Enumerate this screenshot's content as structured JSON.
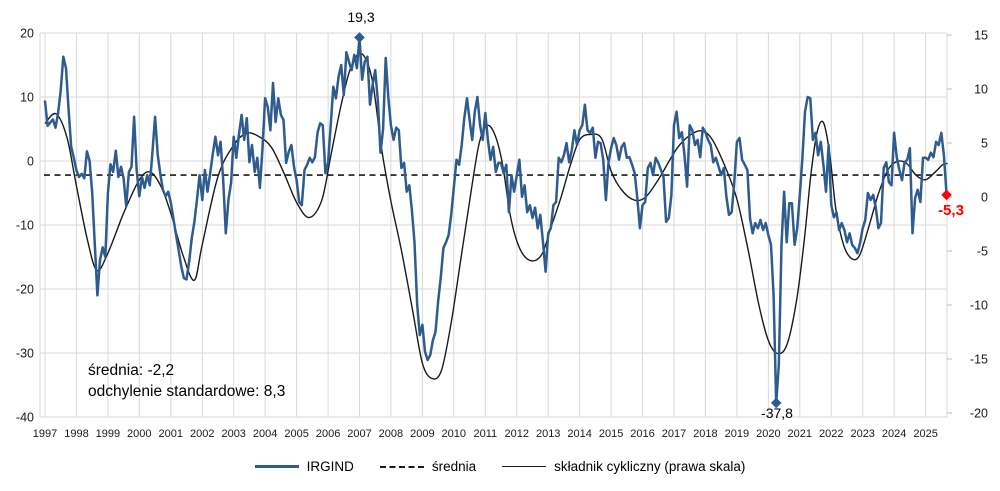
{
  "chart_data": {
    "type": "line",
    "title": "",
    "x_axis": {
      "tick_years": [
        1997,
        1998,
        1999,
        2000,
        2001,
        2002,
        2003,
        2004,
        2005,
        2006,
        2007,
        2008,
        2009,
        2010,
        2011,
        2012,
        2013,
        2014,
        2015,
        2016,
        2017,
        2018,
        2019,
        2020,
        2021,
        2022,
        2023,
        2024,
        2025
      ],
      "range": [
        1997.0,
        2025.83
      ]
    },
    "left_axis": {
      "ticks": [
        20,
        10,
        0,
        -10,
        -20,
        -30,
        -40
      ],
      "min": -40,
      "max": 20
    },
    "right_axis": {
      "ticks": [
        15,
        10,
        5,
        0,
        -5,
        -10,
        -15,
        -20
      ],
      "min": -20,
      "max": 15
    },
    "grid": true,
    "grid_color": "#d9d9d9",
    "mean_value": -2.2,
    "std_dev": 8.3,
    "series": [
      {
        "name": "IRGIND",
        "axis": "left",
        "color": "#2e5c8f",
        "frequency": "monthly",
        "start_year": 1997,
        "values_by_year": [
          [
            9.3,
            5.5,
            6.0,
            6.5,
            5.2,
            7.5,
            11.0,
            16.3,
            14.5,
            8.0,
            2.2,
            0.5
          ],
          [
            -1.5,
            -2.5,
            -2.0,
            -2.7,
            1.5,
            0.0,
            -5.0,
            -13.0,
            -21.0,
            -15.5,
            -13.5,
            -15.0
          ],
          [
            -5.0,
            -0.5,
            -1.7,
            1.6,
            -2.5,
            -0.9,
            -2.7,
            -7.1,
            -1.7,
            -0.9,
            6.9,
            -1.5
          ],
          [
            -5.5,
            -2.5,
            -4.2,
            -2.2,
            -3.8,
            1.5,
            6.9,
            1.0,
            -2.0,
            -4.5,
            -5.5,
            -4.8
          ],
          [
            -6.5,
            -9.0,
            -11.5,
            -14.0,
            -16.5,
            -18.3,
            -18.5,
            -15.8,
            -12.0,
            -9.5,
            -6.0,
            -2.2
          ],
          [
            -6.1,
            -1.4,
            -4.8,
            -2.0,
            1.0,
            3.8,
            0.9,
            3.0,
            -3.0,
            -11.3,
            -6.0,
            -3.4
          ],
          [
            3.8,
            0.5,
            4.1,
            7.2,
            3.3,
            6.7,
            -0.2,
            2.5,
            -1.7,
            0.5,
            -4.2,
            2.0
          ],
          [
            9.8,
            8.4,
            4.8,
            12.2,
            6.1,
            9.8,
            7.2,
            6.4,
            -0.3,
            1.4,
            2.5,
            -0.9
          ],
          [
            -3.0,
            -6.4,
            -6.9,
            -1.4,
            -0.6,
            0.5,
            -0.2,
            0.6,
            4.5,
            5.9,
            5.6,
            -1.9
          ],
          [
            -0.2,
            5.6,
            11.6,
            9.8,
            13.1,
            15.0,
            10.3,
            17.0,
            15.5,
            14.2,
            16.6,
            14.5
          ],
          [
            19.3,
            12.7,
            15.5,
            16.3,
            8.8,
            11.9,
            14.2,
            9.5,
            1.3,
            5.0,
            16.1,
            10.0
          ],
          [
            5.6,
            3.3,
            5.2,
            4.8,
            -1.1,
            -0.3,
            -4.8,
            -3.8,
            -7.7,
            -12.7,
            -22.5,
            -27.2
          ],
          [
            -25.6,
            -29.8,
            -31.1,
            -30.3,
            -28.0,
            -26.7,
            -22.0,
            -18.3,
            -13.6,
            -12.7,
            -11.6,
            -8.4
          ],
          [
            -4.2,
            0.2,
            -0.6,
            2.5,
            6.7,
            9.8,
            6.4,
            3.3,
            7.7,
            10.0,
            5.6,
            3.3
          ],
          [
            7.5,
            3.3,
            0.2,
            2.2,
            -1.7,
            -0.3,
            -0.3,
            -1.9,
            -0.6,
            -8.0,
            -2.2,
            -4.8
          ],
          [
            -2.2,
            0.2,
            -5.6,
            -3.8,
            -8.0,
            -6.9,
            -8.9,
            -7.3,
            -10.5,
            -8.4,
            -12.7,
            -17.3
          ],
          [
            -11.3,
            -10.5,
            -6.9,
            -6.4,
            0.5,
            -0.2,
            0.9,
            2.8,
            -0.2,
            1.7,
            4.8,
            2.5
          ],
          [
            4.8,
            5.6,
            8.8,
            4.8,
            4.4,
            5.2,
            0.5,
            3.0,
            2.8,
            0.2,
            -6.1,
            -0.2
          ],
          [
            2.0,
            3.6,
            2.5,
            0.2,
            2.2,
            2.8,
            0.5,
            0.6,
            -0.6,
            -1.9,
            -5.8,
            -10.5
          ],
          [
            -6.9,
            -6.4,
            -1.1,
            -0.3,
            -2.2,
            0.5,
            -0.3,
            -1.4,
            -2.5,
            -9.5,
            -8.9,
            -5.3
          ],
          [
            5.6,
            7.7,
            3.6,
            4.5,
            0.9,
            -4.0,
            5.6,
            4.8,
            2.5,
            3.3,
            0.6,
            5.2
          ],
          [
            4.5,
            3.3,
            2.5,
            -0.2,
            0.5,
            -0.9,
            -2.2,
            -1.1,
            -5.6,
            -8.4,
            -8.0,
            -3.3
          ],
          [
            3.0,
            3.6,
            0.2,
            -0.6,
            -1.4,
            -8.9,
            -11.3,
            -9.7,
            -10.5,
            -9.2,
            -10.8,
            -9.7
          ],
          [
            -11.6,
            -13.1,
            -21.0,
            -37.8,
            -31.9,
            -13.1,
            -4.8,
            -12.7,
            -6.6,
            -6.6,
            -13.1,
            -10.5
          ],
          [
            -5.3,
            0.5,
            7.7,
            10.0,
            9.8,
            3.3,
            4.4,
            0.9,
            3.0,
            -0.6,
            -4.8,
            2.5
          ],
          [
            -6.9,
            -8.8,
            -8.0,
            -10.8,
            -9.7,
            -10.8,
            -12.7,
            -11.3,
            -13.1,
            -13.6,
            -14.4,
            -12.8
          ],
          [
            -10.5,
            -9.2,
            -5.0,
            -6.1,
            -5.3,
            -7.3,
            -10.5,
            -9.7,
            -1.1,
            -0.2,
            -3.3,
            -3.8
          ],
          [
            4.4,
            0.5,
            -1.4,
            -3.0,
            -0.2,
            0.2,
            2.0,
            -11.3,
            -5.8,
            -4.5,
            -6.4,
            0.5
          ],
          [
            0.5,
            0.2,
            1.3,
            0.6,
            3.0,
            2.5,
            4.4,
            0.9,
            -5.3
          ]
        ]
      },
      {
        "name": "średnia",
        "axis": "left",
        "style": "dashed",
        "color": "#1a1a1a",
        "value": -2.2
      },
      {
        "name": "składnik cykliczny (prawa skala)",
        "axis": "right",
        "style": "solid-thin",
        "color": "#1a1a1a",
        "keypoints": [
          [
            1997.0,
            6.8
          ],
          [
            1997.35,
            7.7
          ],
          [
            1997.7,
            5.5
          ],
          [
            1998.0,
            1.0
          ],
          [
            1998.35,
            -4.0
          ],
          [
            1998.65,
            -6.8
          ],
          [
            1999.0,
            -5.2
          ],
          [
            1999.5,
            -1.5
          ],
          [
            2000.0,
            1.6
          ],
          [
            2000.35,
            2.3
          ],
          [
            2000.7,
            0.9
          ],
          [
            2001.0,
            -1.5
          ],
          [
            2001.4,
            -5.5
          ],
          [
            2001.75,
            -7.7
          ],
          [
            2002.0,
            -4.4
          ],
          [
            2002.5,
            1.9
          ],
          [
            2003.0,
            4.8
          ],
          [
            2003.4,
            5.9
          ],
          [
            2003.8,
            5.6
          ],
          [
            2004.2,
            4.6
          ],
          [
            2004.6,
            2.2
          ],
          [
            2005.0,
            -0.5
          ],
          [
            2005.4,
            -1.9
          ],
          [
            2005.8,
            -0.3
          ],
          [
            2006.1,
            4.0
          ],
          [
            2006.4,
            8.3
          ],
          [
            2006.7,
            11.8
          ],
          [
            2007.05,
            13.3
          ],
          [
            2007.4,
            10.9
          ],
          [
            2007.7,
            4.5
          ],
          [
            2008.0,
            -0.4
          ],
          [
            2008.35,
            -5.2
          ],
          [
            2008.7,
            -10.7
          ],
          [
            2009.0,
            -15.4
          ],
          [
            2009.3,
            -16.8
          ],
          [
            2009.6,
            -16.1
          ],
          [
            2009.9,
            -11.9
          ],
          [
            2010.2,
            -6.2
          ],
          [
            2010.5,
            -0.4
          ],
          [
            2010.8,
            4.9
          ],
          [
            2011.05,
            6.6
          ],
          [
            2011.3,
            5.8
          ],
          [
            2011.55,
            3.0
          ],
          [
            2011.8,
            -1.8
          ],
          [
            2012.1,
            -4.8
          ],
          [
            2012.45,
            -5.9
          ],
          [
            2012.8,
            -5.3
          ],
          [
            2013.1,
            -2.7
          ],
          [
            2013.4,
            -0.1
          ],
          [
            2013.7,
            2.9
          ],
          [
            2014.0,
            5.3
          ],
          [
            2014.35,
            5.8
          ],
          [
            2014.7,
            5.4
          ],
          [
            2015.0,
            2.4
          ],
          [
            2015.35,
            0.6
          ],
          [
            2015.75,
            -0.3
          ],
          [
            2016.1,
            0.0
          ],
          [
            2016.5,
            1.6
          ],
          [
            2016.9,
            3.6
          ],
          [
            2017.2,
            4.9
          ],
          [
            2017.6,
            5.9
          ],
          [
            2017.9,
            6.1
          ],
          [
            2018.2,
            5.4
          ],
          [
            2018.6,
            3.0
          ],
          [
            2019.0,
            -0.2
          ],
          [
            2019.35,
            -4.8
          ],
          [
            2019.7,
            -10.0
          ],
          [
            2020.0,
            -13.3
          ],
          [
            2020.3,
            -14.5
          ],
          [
            2020.6,
            -13.6
          ],
          [
            2020.9,
            -9.5
          ],
          [
            2021.15,
            -3.8
          ],
          [
            2021.35,
            2.0
          ],
          [
            2021.55,
            6.0
          ],
          [
            2021.75,
            6.9
          ],
          [
            2021.95,
            4.0
          ],
          [
            2022.15,
            -1.2
          ],
          [
            2022.4,
            -4.5
          ],
          [
            2022.65,
            -5.7
          ],
          [
            2022.9,
            -5.4
          ],
          [
            2023.2,
            -2.7
          ],
          [
            2023.5,
            0.3
          ],
          [
            2023.8,
            2.5
          ],
          [
            2024.1,
            3.3
          ],
          [
            2024.4,
            3.1
          ],
          [
            2024.7,
            2.0
          ],
          [
            2025.0,
            1.6
          ],
          [
            2025.3,
            2.3
          ],
          [
            2025.55,
            3.0
          ],
          [
            2025.7,
            3.1
          ]
        ]
      }
    ],
    "markers": [
      {
        "label": "19,3",
        "t": 2007.0,
        "value": 19.3,
        "color": "#2e5c8f",
        "label_pos": "above"
      },
      {
        "label": "-37,8",
        "t": 2020.25,
        "value": -37.8,
        "color": "#2e5c8f",
        "label_pos": "below"
      },
      {
        "label": "-5,3",
        "t": 2025.667,
        "value": -5.3,
        "color": "#ff0000",
        "label_pos": "below-left"
      }
    ],
    "stats_note": {
      "line1": "średnia: -2,2",
      "line2": "odchylenie standardowe: 8,3"
    },
    "legend": [
      {
        "label": "IRGIND",
        "style": "solid-thick",
        "color": "#2e5c8f"
      },
      {
        "label": "średnia",
        "style": "dashed",
        "color": "#1a1a1a"
      },
      {
        "label": "składnik cykliczny (prawa skala)",
        "style": "solid-thin",
        "color": "#1a1a1a"
      }
    ]
  }
}
